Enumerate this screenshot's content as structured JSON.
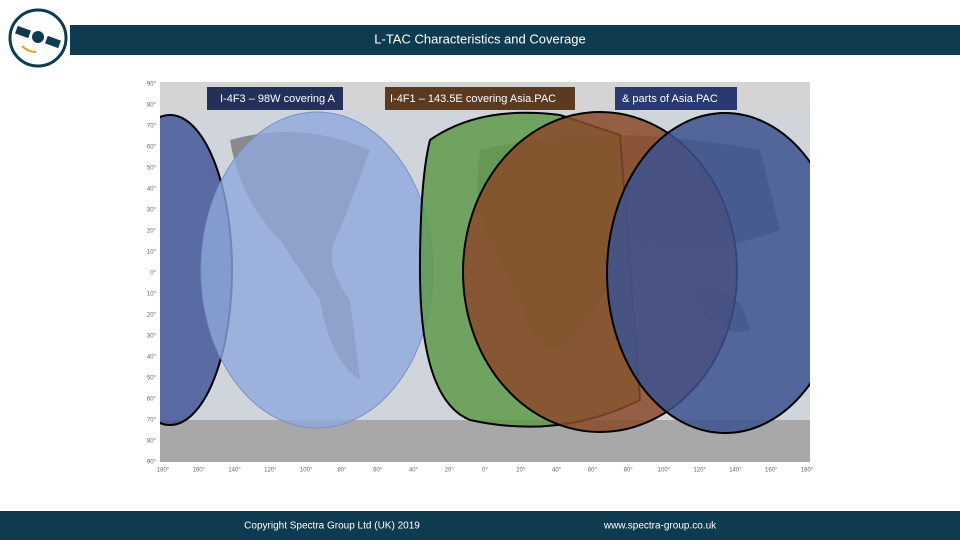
{
  "header": {
    "title": "L-TAC Characteristics and Coverage"
  },
  "map": {
    "labels": [
      "I-4F3 – 98W covering A",
      "I-4F1 – 143.5E covering Asia.PAC",
      "& parts of Asia.PAC"
    ],
    "lat_labels": [
      "90°",
      "80°",
      "70°",
      "60°",
      "50°",
      "40°",
      "30°",
      "20°",
      "10°",
      "0°",
      "10°",
      "20°",
      "30°",
      "40°",
      "50°",
      "60°",
      "70°",
      "80°",
      "90°"
    ],
    "lon_labels": [
      "180°",
      "160°",
      "140°",
      "120°",
      "100°",
      "80°",
      "60°",
      "40°",
      "20°",
      "0°",
      "20°",
      "40°",
      "60°",
      "80°",
      "100°",
      "120°",
      "140°",
      "160°",
      "180°"
    ]
  },
  "footer": {
    "copyright": "Copyright Spectra Group Ltd (UK) 2019",
    "website": "www.spectra-group.co.uk"
  }
}
